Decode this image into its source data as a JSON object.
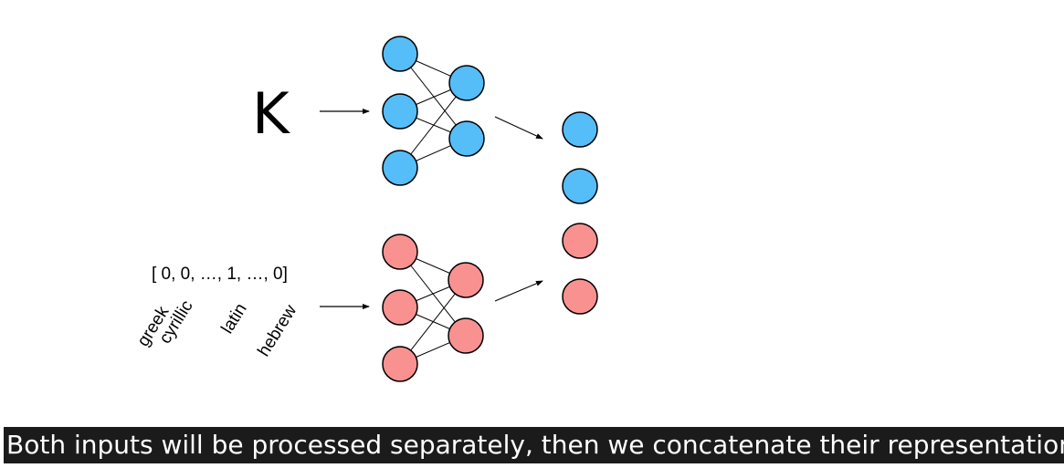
{
  "diagram": {
    "input_glyph": "K",
    "one_hot_vector": "[ 0, 0, …, 1, …, 0]",
    "script_labels": [
      "greek",
      "cyrillic",
      "latin",
      "hebrew"
    ]
  },
  "caption": "Both inputs will be processed separately, then we concatenate their representations.",
  "colors": {
    "blue_node": "#55bdf8",
    "red_node": "#f99191",
    "caption_bg": "#1b1b1b",
    "caption_text": "#ffffff"
  }
}
